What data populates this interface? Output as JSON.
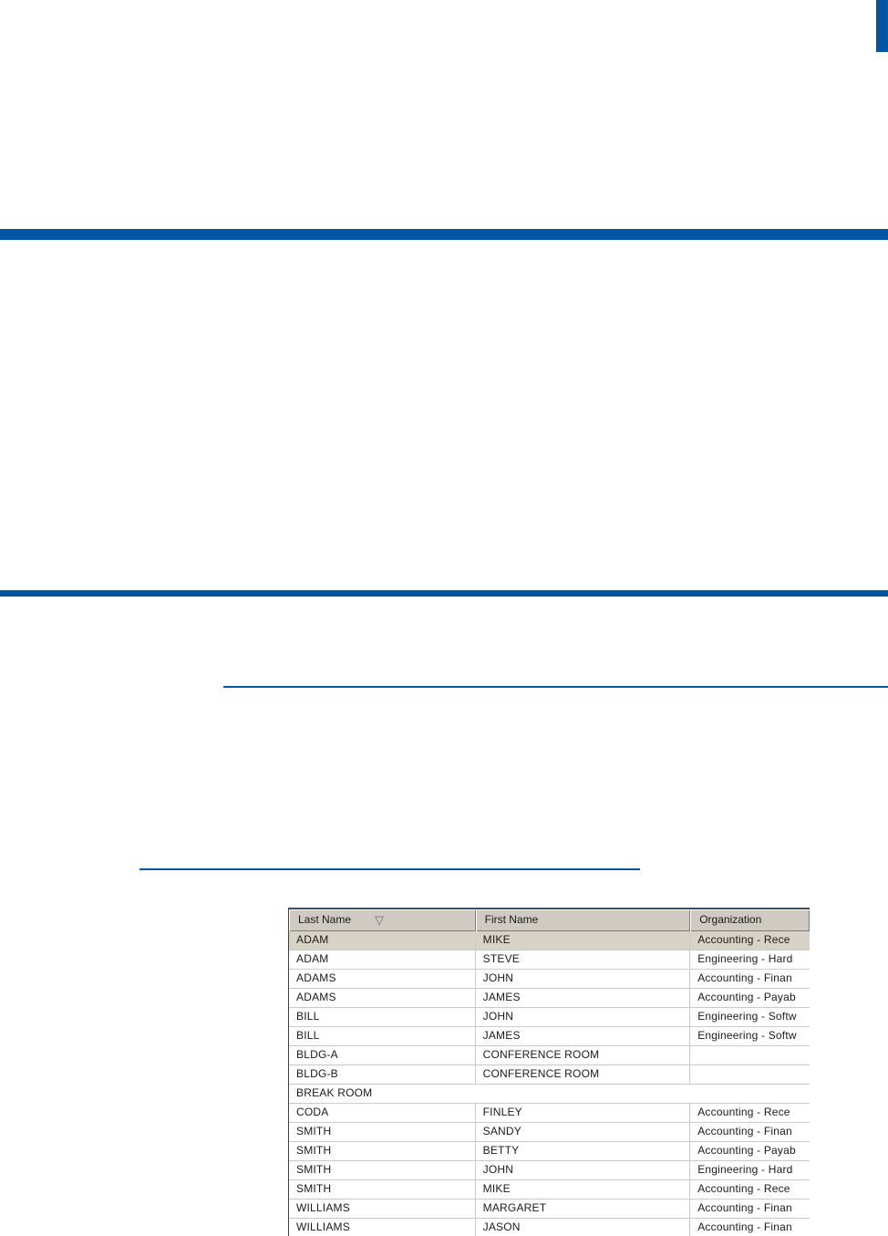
{
  "page": {
    "background": "#ffffff",
    "colors": {
      "accent_blue": "#0056a6",
      "header_face": "#cfcbc3",
      "selected_row": "#d7d3c7",
      "grid_line": "#c9c9c9"
    }
  },
  "decorations": {
    "corner_bar": {
      "name": "top-right-accent-bar",
      "color": "#0056a6"
    },
    "section_rule_1": {
      "name": "full-width-blue-rule",
      "color": "#0056a6"
    },
    "section_rule_2": {
      "name": "full-width-blue-rule",
      "color": "#0056a6"
    },
    "thin_rule": {
      "name": "content-blue-rule",
      "color": "#0056a6"
    },
    "link_rule": {
      "name": "short-blue-rule",
      "color": "#0056a6"
    }
  },
  "table": {
    "columns": [
      {
        "label": "Last Name",
        "sorted": true
      },
      {
        "label": "First Name",
        "sorted": false
      },
      {
        "label": "Organization",
        "sorted": false
      }
    ],
    "sort_icon": {
      "name": "sort-descending-icon",
      "glyph": "▽"
    },
    "rows": [
      {
        "last": "ADAM",
        "first": "MIKE",
        "org": "Accounting - Rece",
        "selected": true
      },
      {
        "last": "ADAM",
        "first": "STEVE",
        "org": "Engineering - Hard",
        "selected": false
      },
      {
        "last": "ADAMS",
        "first": "JOHN",
        "org": "Accounting - Finan",
        "selected": false
      },
      {
        "last": "ADAMS",
        "first": "JAMES",
        "org": "Accounting - Payab",
        "selected": false
      },
      {
        "last": "BILL",
        "first": "JOHN",
        "org": "Engineering - Softw",
        "selected": false
      },
      {
        "last": "BILL",
        "first": "JAMES",
        "org": "Engineering - Softw",
        "selected": false
      },
      {
        "last": "BLDG-A",
        "first": "CONFERENCE ROOM",
        "org": "",
        "selected": false
      },
      {
        "last": "BLDG-B",
        "first": "CONFERENCE ROOM",
        "org": "",
        "selected": false
      },
      {
        "last": "BREAK ROOM",
        "first": "",
        "org": "",
        "selected": false
      },
      {
        "last": "CODA",
        "first": "FINLEY",
        "org": "Accounting - Rece",
        "selected": false
      },
      {
        "last": "SMITH",
        "first": "SANDY",
        "org": "Accounting - Finan",
        "selected": false
      },
      {
        "last": "SMITH",
        "first": "BETTY",
        "org": "Accounting - Payab",
        "selected": false
      },
      {
        "last": "SMITH",
        "first": "JOHN",
        "org": "Engineering - Hard",
        "selected": false
      },
      {
        "last": "SMITH",
        "first": "MIKE",
        "org": "Accounting - Rece",
        "selected": false
      },
      {
        "last": "WILLIAMS",
        "first": "MARGARET",
        "org": "Accounting - Finan",
        "selected": false
      },
      {
        "last": "WILLIAMS",
        "first": "JASON",
        "org": "Accounting - Finan",
        "selected": false
      }
    ]
  }
}
